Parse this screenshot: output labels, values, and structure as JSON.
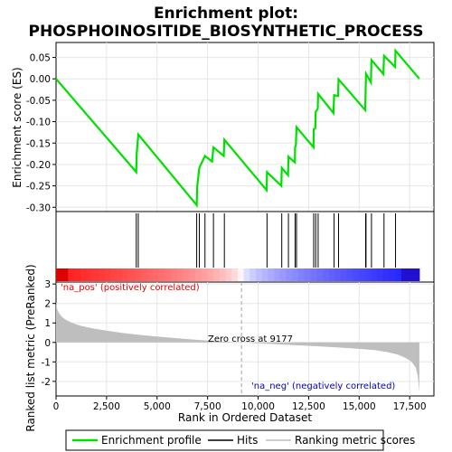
{
  "chart_data": {
    "type": "line",
    "title_line1": "Enrichment plot:",
    "title_line2": "PHOSPHOINOSITIDE_BIOSYNTHETIC_PROCESS",
    "es_panel": {
      "ylabel": "Enrichment score (ES)",
      "ylim": [
        -0.31,
        0.085
      ],
      "yticks": [
        -0.3,
        -0.25,
        -0.2,
        -0.15,
        -0.1,
        -0.05,
        0.0,
        0.05
      ],
      "ytick_labels": [
        "-0.30",
        "-0.25",
        "-0.20",
        "-0.15",
        "-0.10",
        "-0.05",
        "0.00",
        "0.05"
      ],
      "profile_color": "#00e000",
      "x": [
        0,
        3970,
        3990,
        4070,
        6960,
        6990,
        7090,
        7370,
        7720,
        7790,
        8300,
        8330,
        10420,
        10440,
        11150,
        11170,
        11480,
        11500,
        11820,
        11830,
        11870,
        11900,
        12740,
        12750,
        12830,
        12850,
        12950,
        12970,
        13730,
        13760,
        13960,
        13980,
        15300,
        15320,
        15340,
        15580,
        15610,
        16200,
        16230,
        16780,
        16800,
        17980
      ],
      "y": [
        0.0,
        -0.218,
        -0.175,
        -0.13,
        -0.295,
        -0.25,
        -0.208,
        -0.18,
        -0.193,
        -0.16,
        -0.18,
        -0.142,
        -0.26,
        -0.218,
        -0.25,
        -0.208,
        -0.225,
        -0.182,
        -0.195,
        -0.16,
        -0.155,
        -0.113,
        -0.16,
        -0.118,
        -0.115,
        -0.077,
        -0.07,
        -0.035,
        -0.08,
        -0.038,
        -0.04,
        -0.001,
        -0.073,
        -0.035,
        0.012,
        -0.008,
        0.044,
        0.011,
        0.054,
        0.028,
        0.066,
        0.0
      ]
    },
    "hits": [
      3970,
      4070,
      6960,
      7090,
      7370,
      7790,
      8330,
      10440,
      11170,
      11500,
      11830,
      11900,
      12750,
      12850,
      12970,
      13760,
      13980,
      15320,
      15340,
      15610,
      16230,
      16800
    ],
    "ranked_panel": {
      "ylabel": "Ranked list metric (PreRanked)",
      "xlabel": "Rank in Ordered Dataset",
      "ylim": [
        -2.75,
        3.1
      ],
      "yticks": [
        3,
        2,
        1,
        0,
        -1,
        -2
      ],
      "ytick_labels": [
        "3",
        "2",
        "1",
        "0",
        "-1",
        "-2"
      ],
      "xlim": [
        0,
        18700
      ],
      "xticks": [
        0,
        2500,
        5000,
        7500,
        10000,
        12500,
        15000,
        17500
      ],
      "xtick_labels": [
        "0",
        "2,500",
        "5,000",
        "7,500",
        "10,000",
        "12,500",
        "15,000",
        "17,500"
      ],
      "n_genes": 17980,
      "zero_cross": 9177,
      "zero_cross_label": "Zero cross at 9177",
      "pos_label": "'na_pos' (positively correlated)",
      "neg_label": "'na_neg' (negatively correlated)",
      "pos_color": "#e00000",
      "neg_color": "#0000c0",
      "fill_color": "#bebebe",
      "metric_x": [
        0,
        60,
        150,
        300,
        500,
        800,
        1200,
        1800,
        2500,
        3500,
        4500,
        5500,
        6500,
        7500,
        8500,
        9177,
        10000,
        11000,
        12000,
        13000,
        14000,
        15000,
        15800,
        16400,
        16900,
        17300,
        17600,
        17800,
        17900,
        17950,
        17980
      ],
      "metric_y": [
        2.0,
        1.7,
        1.5,
        1.3,
        1.15,
        1.0,
        0.86,
        0.72,
        0.6,
        0.46,
        0.35,
        0.26,
        0.17,
        0.09,
        0.03,
        0.0,
        -0.05,
        -0.1,
        -0.15,
        -0.2,
        -0.26,
        -0.33,
        -0.4,
        -0.5,
        -0.62,
        -0.8,
        -1.0,
        -1.3,
        -1.7,
        -2.2,
        -2.55
      ]
    },
    "legend": {
      "items": [
        "Enrichment profile",
        "Hits",
        "Ranking metric scores"
      ]
    }
  }
}
